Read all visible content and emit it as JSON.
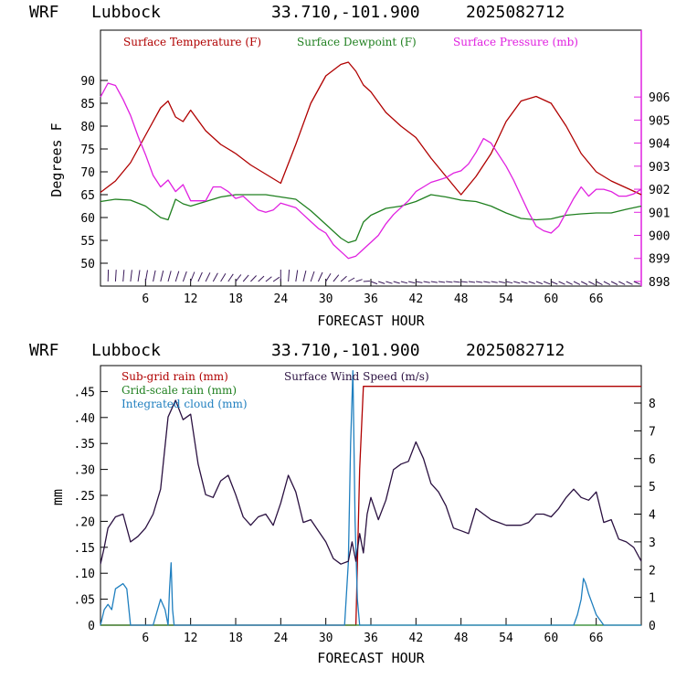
{
  "chart_data": [
    {
      "type": "line",
      "header": {
        "model": "WRF",
        "location": "Lubbock",
        "coords": "33.710,-101.900",
        "run": "2025082712"
      },
      "xlabel": "FORECAST HOUR",
      "ylabel": "Degrees F",
      "xlim": [
        0,
        72
      ],
      "xticks": [
        6,
        12,
        18,
        24,
        30,
        36,
        42,
        48,
        54,
        60,
        66
      ],
      "ylim": [
        45,
        101
      ],
      "yticks": [
        50,
        55,
        60,
        65,
        70,
        75,
        80,
        85,
        90
      ],
      "y2lim": [
        897.8,
        908.9
      ],
      "y2ticks": [
        898,
        899,
        900,
        901,
        902,
        903,
        904,
        905,
        906
      ],
      "grid": false,
      "legend_position": "top",
      "colors": {
        "temperature": "#b00000",
        "dewpoint": "#208020",
        "pressure": "#e020e0",
        "wind_barbs": "#3a1a5a",
        "right_axis": "#e020e0"
      },
      "series": [
        {
          "name": "Surface Temperature (F)",
          "axis": "left",
          "color": "#b00000",
          "x": [
            0,
            2,
            4,
            6,
            8,
            9,
            10,
            11,
            12,
            14,
            16,
            18,
            20,
            22,
            24,
            26,
            28,
            30,
            32,
            33,
            34,
            35,
            36,
            38,
            40,
            42,
            44,
            46,
            48,
            50,
            52,
            54,
            56,
            58,
            60,
            62,
            64,
            66,
            68,
            70,
            72
          ],
          "y": [
            65.5,
            68,
            72,
            78,
            84,
            85.5,
            82,
            81,
            83.5,
            79,
            76,
            74,
            71.5,
            69.5,
            67.5,
            76,
            85,
            91,
            93.5,
            94,
            92,
            89,
            87.5,
            83,
            80,
            77.5,
            73,
            69,
            65,
            69,
            74,
            81,
            85.5,
            86.5,
            85,
            80,
            74,
            70,
            68,
            66.5,
            65
          ]
        },
        {
          "name": "Surface Dewpoint (F)",
          "axis": "left",
          "color": "#208020",
          "x": [
            0,
            2,
            4,
            6,
            8,
            9,
            10,
            11,
            12,
            14,
            16,
            18,
            20,
            22,
            24,
            26,
            28,
            30,
            32,
            33,
            34,
            35,
            36,
            38,
            40,
            42,
            44,
            46,
            48,
            50,
            52,
            54,
            56,
            58,
            60,
            62,
            64,
            66,
            68,
            70,
            72
          ],
          "y": [
            63.5,
            64,
            63.8,
            62.5,
            60,
            59.5,
            64,
            63,
            62.5,
            63.5,
            64.5,
            65,
            65,
            65,
            64.5,
            64,
            61.5,
            58.5,
            55.5,
            54.5,
            55,
            59,
            60.5,
            62,
            62.5,
            63.5,
            65,
            64.5,
            63.8,
            63.5,
            62.5,
            61,
            59.8,
            59.5,
            59.7,
            60.5,
            60.8,
            61,
            61,
            61.8,
            62.5
          ]
        },
        {
          "name": "Surface Pressure (mb)",
          "axis": "right",
          "color": "#e020e0",
          "x": [
            0,
            1,
            2,
            3,
            4,
            5,
            6,
            7,
            8,
            9,
            10,
            11,
            12,
            13,
            14,
            15,
            16,
            17,
            18,
            19,
            20,
            21,
            22,
            23,
            24,
            25,
            26,
            27,
            28,
            29,
            30,
            31,
            32,
            33,
            34,
            35,
            36,
            37,
            38,
            39,
            40,
            41,
            42,
            43,
            44,
            45,
            46,
            47,
            48,
            49,
            50,
            51,
            52,
            53,
            54,
            55,
            56,
            57,
            58,
            59,
            60,
            61,
            62,
            63,
            64,
            65,
            66,
            67,
            68,
            69,
            70,
            71,
            72
          ],
          "y": [
            906,
            906.6,
            906.5,
            905.9,
            905.2,
            904.3,
            903.5,
            902.6,
            902.1,
            902.4,
            901.9,
            902.2,
            901.5,
            901.5,
            901.5,
            902.1,
            902.1,
            901.9,
            901.6,
            901.7,
            901.4,
            901.1,
            901.0,
            901.1,
            901.4,
            901.3,
            901.2,
            900.9,
            900.6,
            900.3,
            900.1,
            899.6,
            899.3,
            899,
            899.1,
            899.4,
            899.7,
            900.0,
            900.5,
            900.9,
            901.2,
            901.5,
            901.9,
            902.1,
            902.3,
            902.4,
            902.5,
            902.7,
            902.8,
            903.1,
            903.6,
            904.2,
            904.0,
            903.5,
            903.0,
            902.4,
            901.7,
            901.0,
            900.4,
            900.2,
            900.1,
            900.4,
            901.0,
            901.6,
            902.1,
            901.7,
            902.0,
            902.0,
            901.9,
            901.7,
            901.7,
            901.8,
            902.0
          ]
        }
      ]
    },
    {
      "type": "line",
      "header": {
        "model": "WRF",
        "location": "Lubbock",
        "coords": "33.710,-101.900",
        "run": "2025082712"
      },
      "xlabel": "FORECAST HOUR",
      "ylabel": "mm",
      "xlim": [
        0,
        72
      ],
      "xticks": [
        6,
        12,
        18,
        24,
        30,
        36,
        42,
        48,
        54,
        60,
        66
      ],
      "ylim": [
        0,
        0.5
      ],
      "yticks": [
        0,
        0.05,
        0.1,
        0.15,
        0.2,
        0.25,
        0.3,
        0.35,
        0.4,
        0.45
      ],
      "ytick_labels": [
        "0",
        ".05",
        ".10",
        ".15",
        ".20",
        ".25",
        ".30",
        ".35",
        ".40",
        ".45"
      ],
      "y2lim": [
        0,
        9.35
      ],
      "y2ticks": [
        0,
        1,
        2,
        3,
        4,
        5,
        6,
        7,
        8
      ],
      "grid": false,
      "legend_position": "top-left",
      "colors": {
        "subgrid_rain": "#b00000",
        "gridscale_rain": "#208020",
        "cloud": "#1f7fbf",
        "wind_speed": "#2a1040"
      },
      "series": [
        {
          "name": "Sub-grid rain (mm)",
          "axis": "left",
          "color": "#b00000",
          "x": [
            0,
            33,
            34,
            34.5,
            35,
            72
          ],
          "y": [
            0,
            0,
            0,
            0.3,
            0.46,
            0.46
          ]
        },
        {
          "name": "Grid-scale rain (mm)",
          "axis": "left",
          "color": "#208020",
          "x": [
            0,
            72
          ],
          "y": [
            0,
            0
          ]
        },
        {
          "name": "Integrated cloud (mm)",
          "axis": "left",
          "color": "#1f7fbf",
          "x": [
            0,
            0.5,
            1,
            1.5,
            2,
            3,
            3.5,
            4,
            5,
            7,
            8,
            8.3,
            8.6,
            9,
            9.2,
            9.4,
            9.6,
            9.8,
            10,
            32.5,
            33,
            33.3,
            33.6,
            33.9,
            34.2,
            34.5,
            63,
            63.5,
            64,
            64.3,
            64.6,
            65,
            65.5,
            66,
            67,
            72
          ],
          "y": [
            0,
            0.03,
            0.04,
            0.03,
            0.07,
            0.08,
            0.07,
            0,
            0,
            0,
            0.05,
            0.04,
            0.03,
            0,
            0.07,
            0.12,
            0.03,
            0,
            0,
            0,
            0.12,
            0.35,
            0.49,
            0.2,
            0.05,
            0,
            0,
            0.02,
            0.05,
            0.09,
            0.08,
            0.06,
            0.04,
            0.02,
            0,
            0
          ]
        },
        {
          "name": "Surface Wind Speed (m/s)",
          "axis": "right",
          "color": "#2a1040",
          "x": [
            0,
            0.5,
            1,
            2,
            3,
            4,
            5,
            6,
            7,
            8,
            9,
            10,
            11,
            12,
            13,
            14,
            15,
            16,
            17,
            18,
            19,
            20,
            21,
            22,
            23,
            24,
            25,
            26,
            27,
            28,
            29,
            30,
            31,
            32,
            33,
            33.5,
            34,
            34.5,
            35,
            35.5,
            36,
            37,
            38,
            39,
            40,
            41,
            42,
            43,
            44,
            45,
            46,
            47,
            48,
            49,
            50,
            51,
            52,
            53,
            54,
            55,
            56,
            57,
            58,
            59,
            60,
            61,
            62,
            63,
            64,
            65,
            66,
            67,
            68,
            69,
            70,
            71,
            72
          ],
          "y": [
            2.2,
            2.8,
            3.5,
            3.9,
            4.0,
            3.0,
            3.2,
            3.5,
            4.0,
            4.9,
            7.5,
            8.1,
            7.4,
            7.6,
            5.8,
            4.7,
            4.6,
            5.2,
            5.4,
            4.7,
            3.9,
            3.6,
            3.9,
            4.0,
            3.6,
            4.4,
            5.4,
            4.8,
            3.7,
            3.8,
            3.4,
            3.0,
            2.4,
            2.2,
            2.3,
            3.0,
            2.3,
            3.3,
            2.6,
            4.0,
            4.6,
            3.8,
            4.5,
            5.6,
            5.8,
            5.9,
            6.6,
            6.0,
            5.1,
            4.8,
            4.3,
            3.5,
            3.4,
            3.3,
            4.2,
            4.0,
            3.8,
            3.7,
            3.6,
            3.6,
            3.6,
            3.7,
            4.0,
            4.0,
            3.9,
            4.2,
            4.6,
            4.9,
            4.6,
            4.5,
            4.8,
            3.7,
            3.8,
            3.1,
            3.0,
            2.8,
            2.3
          ]
        }
      ]
    }
  ]
}
